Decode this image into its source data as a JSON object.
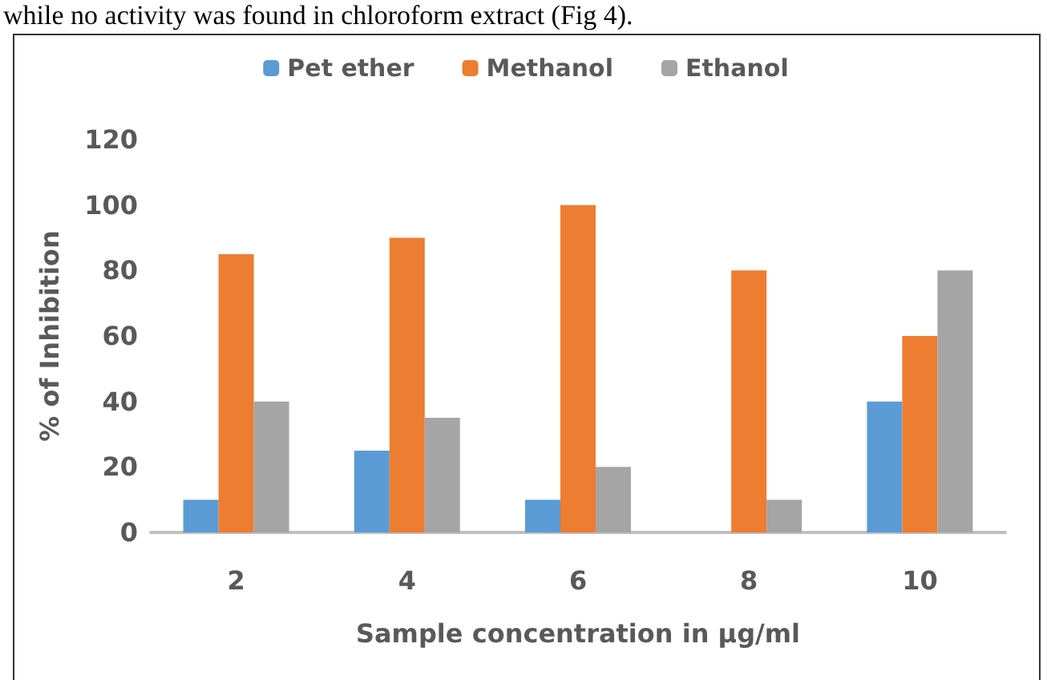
{
  "chart_data": {
    "type": "bar",
    "xlabel": "Sample concentration in µg/ml",
    "ylabel": "% of Inhibition",
    "annotations": [
      "while no activity was found in chloroform extract (Fig 4)."
    ],
    "categories": [
      "2",
      "4",
      "6",
      "8",
      "10"
    ],
    "series": [
      {
        "name": "Pet ether",
        "color": "#5b9bd5",
        "values": [
          10,
          25,
          10,
          0,
          40
        ]
      },
      {
        "name": "Methanol",
        "color": "#ed7d31",
        "values": [
          85,
          90,
          100,
          80,
          60
        ]
      },
      {
        "name": "Ethanol",
        "color": "#a5a5a5",
        "values": [
          40,
          35,
          20,
          10,
          80
        ]
      }
    ],
    "ylim": [
      0,
      120
    ],
    "yticks": [
      0,
      20,
      40,
      60,
      80,
      100,
      120
    ],
    "grid": false,
    "legend": "top"
  }
}
